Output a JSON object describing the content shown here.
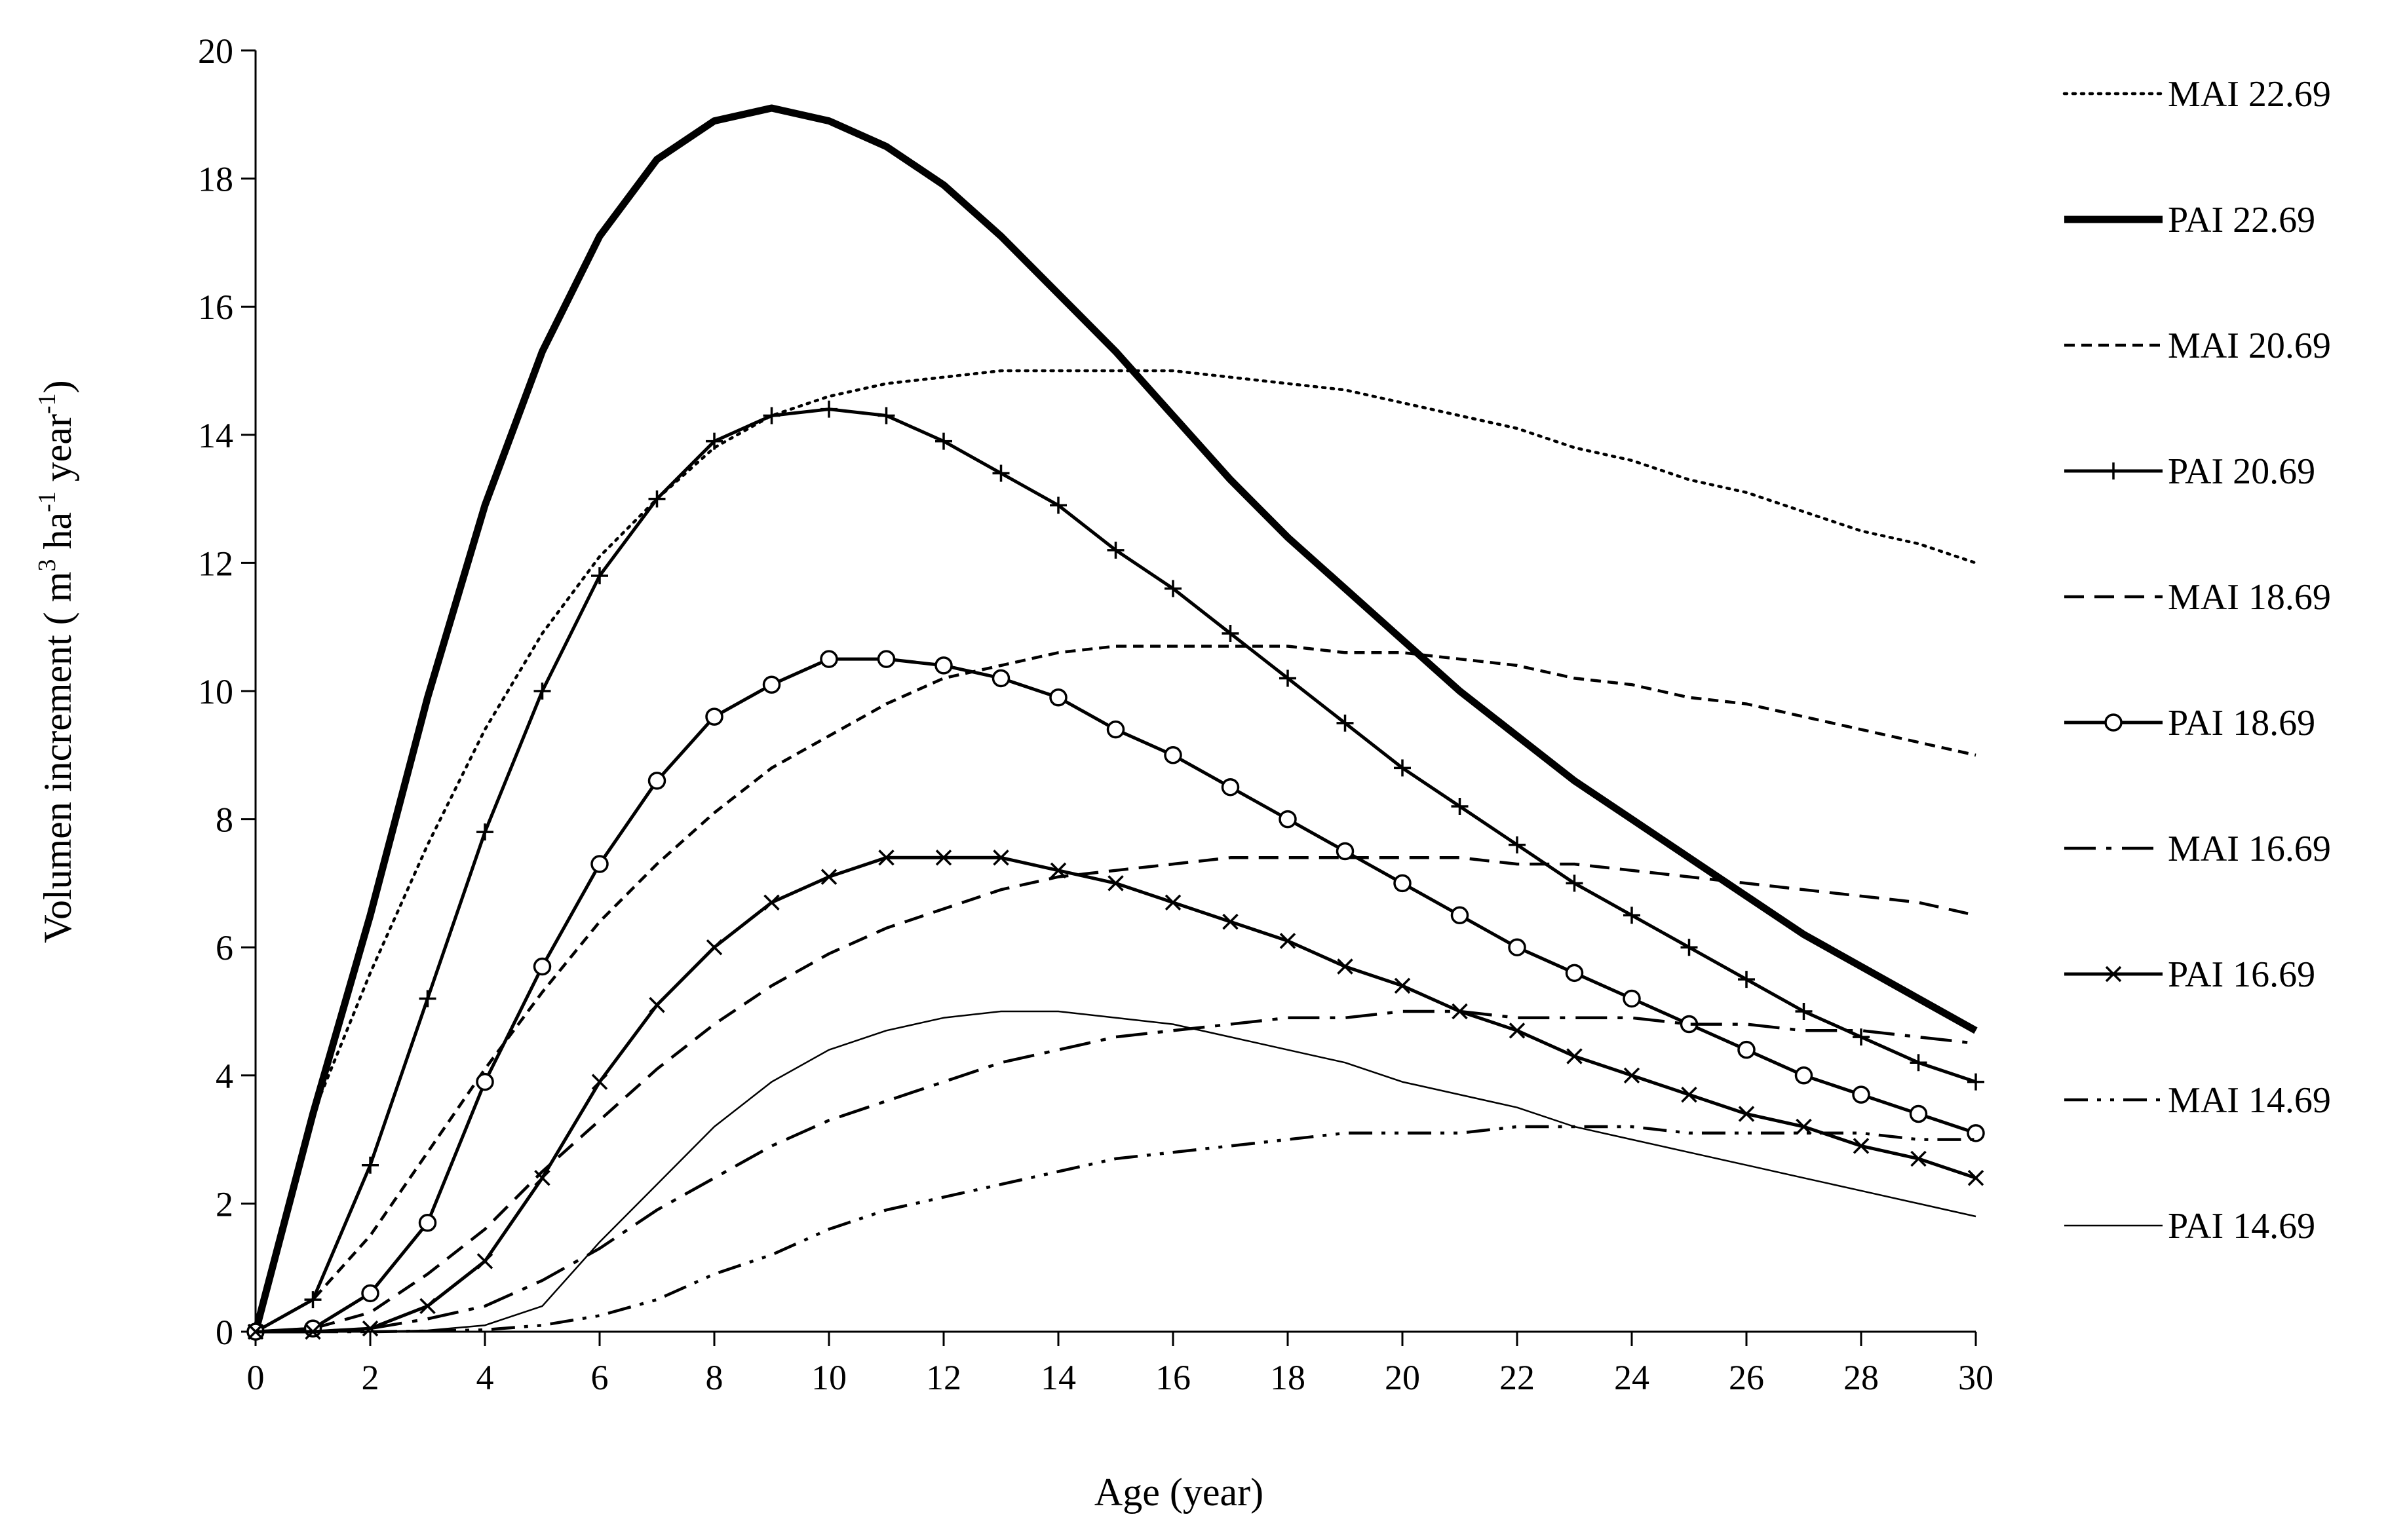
{
  "chart_data": {
    "type": "line",
    "title": "",
    "xlabel": "Age (year)",
    "ylabel": {
      "prefix": "Volumen increment ( m",
      "sup1": "3",
      "mid": " ha",
      "sup2": "-1",
      "mid2": " year",
      "sup3": "-1",
      "suffix": ")"
    },
    "xlim": [
      0,
      30
    ],
    "ylim": [
      0,
      20
    ],
    "xticks": [
      0,
      2,
      4,
      6,
      8,
      10,
      12,
      14,
      16,
      18,
      20,
      22,
      24,
      26,
      28,
      30
    ],
    "yticks": [
      0,
      2,
      4,
      6,
      8,
      10,
      12,
      14,
      16,
      18,
      20
    ],
    "grid": false,
    "legend_position": "right",
    "x": [
      0,
      1,
      2,
      3,
      4,
      5,
      6,
      7,
      8,
      9,
      10,
      11,
      12,
      13,
      14,
      15,
      16,
      17,
      18,
      19,
      20,
      21,
      22,
      23,
      24,
      25,
      26,
      27,
      28,
      29,
      30
    ],
    "series": [
      {
        "name": "MAI 22.69",
        "style": "dotted",
        "marker": "none",
        "width": "thin",
        "values": [
          0,
          3.4,
          5.6,
          7.6,
          9.4,
          10.9,
          12.1,
          13.0,
          13.8,
          14.3,
          14.6,
          14.8,
          14.9,
          15.0,
          15.0,
          15.0,
          15.0,
          14.9,
          14.8,
          14.7,
          14.5,
          14.3,
          14.1,
          13.8,
          13.6,
          13.3,
          13.1,
          12.8,
          12.5,
          12.3,
          12.0
        ]
      },
      {
        "name": "PAI 22.69",
        "style": "solid",
        "marker": "none",
        "width": "bold",
        "values": [
          0,
          3.4,
          6.5,
          9.9,
          12.9,
          15.3,
          17.1,
          18.3,
          18.9,
          19.1,
          18.9,
          18.5,
          17.9,
          17.1,
          16.2,
          15.3,
          14.3,
          13.3,
          12.4,
          11.6,
          10.8,
          10.0,
          9.3,
          8.6,
          8.0,
          7.4,
          6.8,
          6.2,
          5.7,
          5.2,
          4.7
        ]
      },
      {
        "name": "MAI 20.69",
        "style": "short-dash",
        "marker": "none",
        "width": "thin",
        "values": [
          0,
          0.5,
          1.5,
          2.8,
          4.1,
          5.3,
          6.4,
          7.3,
          8.1,
          8.8,
          9.3,
          9.8,
          10.2,
          10.4,
          10.6,
          10.7,
          10.7,
          10.7,
          10.7,
          10.6,
          10.6,
          10.5,
          10.4,
          10.2,
          10.1,
          9.9,
          9.8,
          9.6,
          9.4,
          9.2,
          9.0
        ]
      },
      {
        "name": "PAI 20.69",
        "style": "solid",
        "marker": "plus",
        "width": "normal",
        "values": [
          0,
          0.5,
          2.6,
          5.2,
          7.8,
          10.0,
          11.8,
          13.0,
          13.9,
          14.3,
          14.4,
          14.3,
          13.9,
          13.4,
          12.9,
          12.2,
          11.6,
          10.9,
          10.2,
          9.5,
          8.8,
          8.2,
          7.6,
          7.0,
          6.5,
          6.0,
          5.5,
          5.0,
          4.6,
          4.2,
          3.9
        ]
      },
      {
        "name": "MAI 18.69",
        "style": "dash",
        "marker": "none",
        "width": "thin",
        "values": [
          0,
          0.05,
          0.3,
          0.9,
          1.6,
          2.5,
          3.3,
          4.1,
          4.8,
          5.4,
          5.9,
          6.3,
          6.6,
          6.9,
          7.1,
          7.2,
          7.3,
          7.4,
          7.4,
          7.4,
          7.4,
          7.4,
          7.3,
          7.3,
          7.2,
          7.1,
          7.0,
          6.9,
          6.8,
          6.7,
          6.5
        ]
      },
      {
        "name": "PAI 18.69",
        "style": "solid",
        "marker": "circle",
        "width": "normal",
        "values": [
          0,
          0.05,
          0.6,
          1.7,
          3.9,
          5.7,
          7.3,
          8.6,
          9.6,
          10.1,
          10.5,
          10.5,
          10.4,
          10.2,
          9.9,
          9.4,
          9.0,
          8.5,
          8.0,
          7.5,
          7.0,
          6.5,
          6.0,
          5.6,
          5.2,
          4.8,
          4.4,
          4.0,
          3.7,
          3.4,
          3.1
        ]
      },
      {
        "name": "MAI 16.69",
        "style": "long-dash-dot",
        "marker": "none",
        "width": "thin",
        "values": [
          0,
          0,
          0.05,
          0.2,
          0.4,
          0.8,
          1.3,
          1.9,
          2.4,
          2.9,
          3.3,
          3.6,
          3.9,
          4.2,
          4.4,
          4.6,
          4.7,
          4.8,
          4.9,
          4.9,
          5.0,
          5.0,
          4.9,
          4.9,
          4.9,
          4.8,
          4.8,
          4.7,
          4.7,
          4.6,
          4.5
        ]
      },
      {
        "name": "PAI 16.69",
        "style": "solid",
        "marker": "x",
        "width": "normal",
        "values": [
          0,
          0,
          0.05,
          0.4,
          1.1,
          2.4,
          3.9,
          5.1,
          6.0,
          6.7,
          7.1,
          7.4,
          7.4,
          7.4,
          7.2,
          7.0,
          6.7,
          6.4,
          6.1,
          5.7,
          5.4,
          5.0,
          4.7,
          4.3,
          4.0,
          3.7,
          3.4,
          3.2,
          2.9,
          2.7,
          2.4
        ]
      },
      {
        "name": "MAI 14.69",
        "style": "dash-dot-dot",
        "marker": "none",
        "width": "thin",
        "values": [
          0,
          0,
          0,
          0.01,
          0.03,
          0.1,
          0.25,
          0.5,
          0.9,
          1.2,
          1.6,
          1.9,
          2.1,
          2.3,
          2.5,
          2.7,
          2.8,
          2.9,
          3.0,
          3.1,
          3.1,
          3.1,
          3.2,
          3.2,
          3.2,
          3.1,
          3.1,
          3.1,
          3.1,
          3.0,
          3.0
        ]
      },
      {
        "name": "PAI 14.69",
        "style": "solid",
        "marker": "none",
        "width": "hairline",
        "values": [
          0,
          0,
          0,
          0.02,
          0.1,
          0.4,
          1.4,
          2.3,
          3.2,
          3.9,
          4.4,
          4.7,
          4.9,
          5.0,
          5.0,
          4.9,
          4.8,
          4.6,
          4.4,
          4.2,
          3.9,
          3.7,
          3.5,
          3.2,
          3.0,
          2.8,
          2.6,
          2.4,
          2.2,
          2.0,
          1.8
        ]
      }
    ]
  }
}
